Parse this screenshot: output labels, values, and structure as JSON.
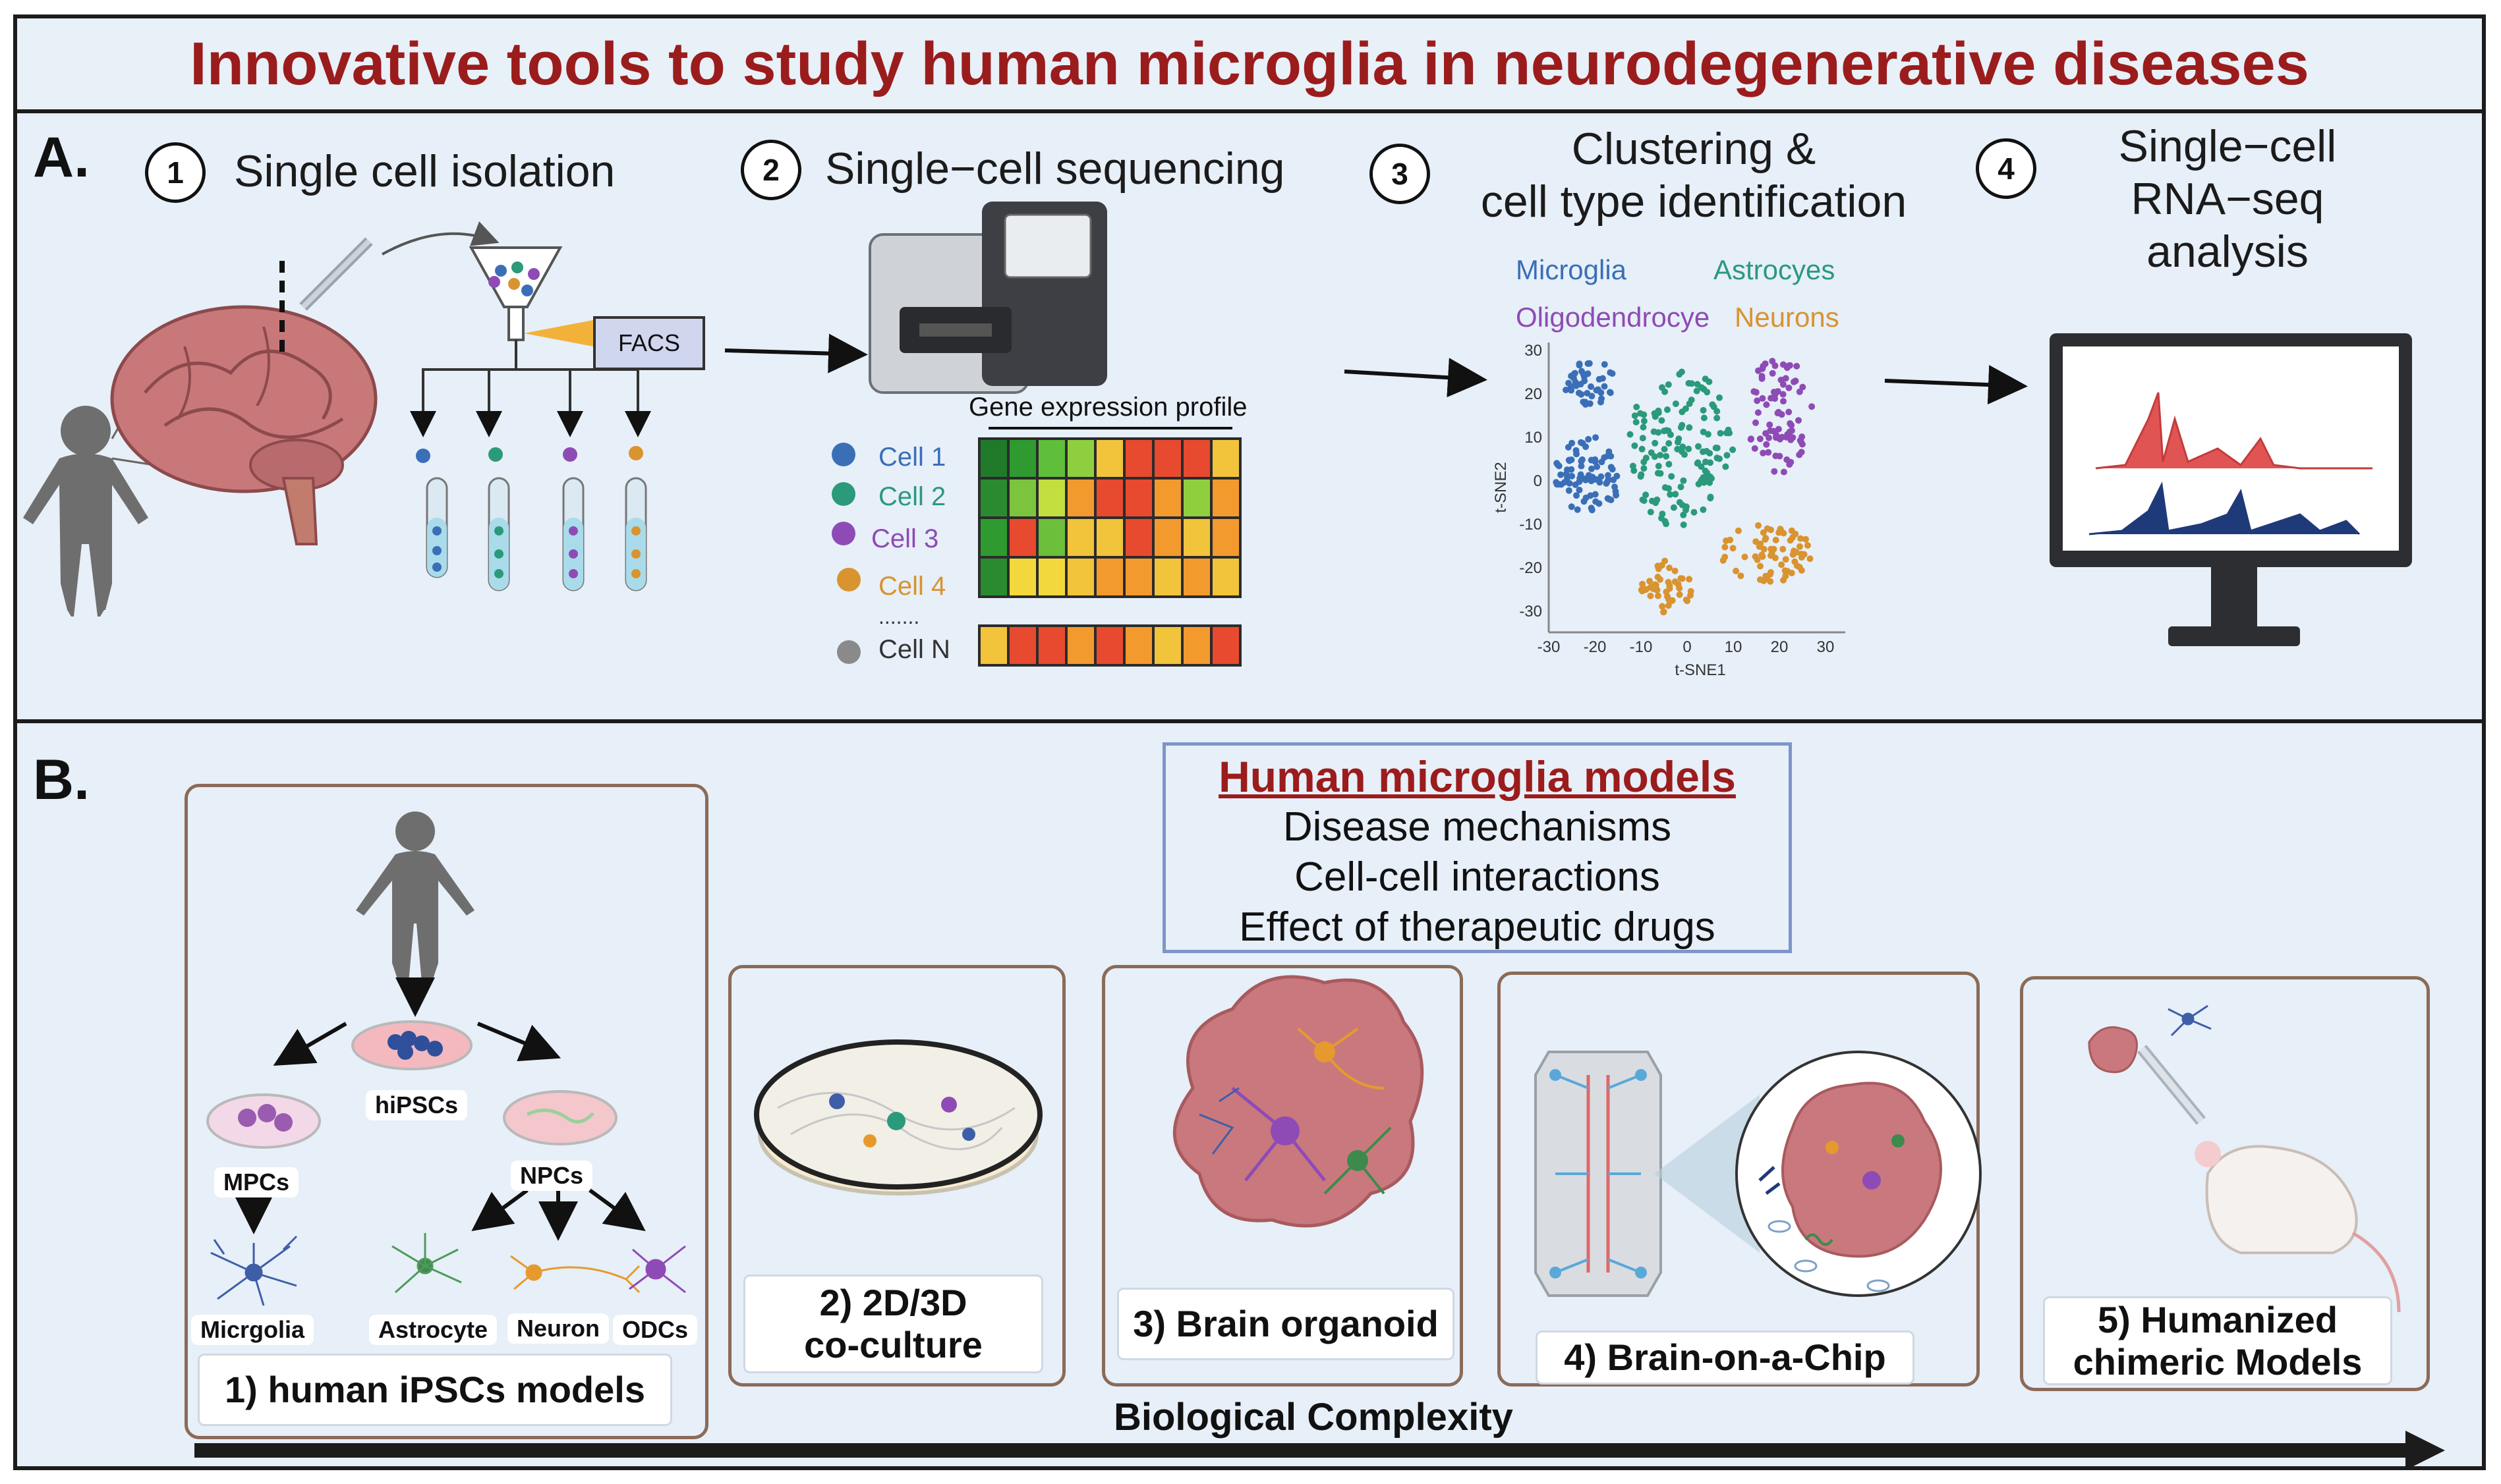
{
  "title": "Innovative tools to study human microglia in neurodegenerative diseases",
  "panel_a": {
    "label": "A.",
    "steps": [
      {
        "num": "1",
        "text": "Single cell isolation"
      },
      {
        "num": "2",
        "text": "Single−cell sequencing"
      },
      {
        "num": "3",
        "line1": "Clustering &",
        "line2": "cell type identification"
      },
      {
        "num": "4",
        "line1": "Single−cell",
        "line2": "RNA−seq",
        "line3": "analysis"
      }
    ],
    "facs_label": "FACS",
    "gene_expression_title": "Gene expression profile",
    "cells": [
      "Cell 1",
      "Cell 2",
      "Cell 3",
      "Cell 4",
      "Cell N"
    ],
    "cell_colors": [
      "#3a6fb7",
      "#2a9a7a",
      "#8e4bb5",
      "#d9932f",
      "#8a8a8a"
    ],
    "ellipsis": ".......",
    "heatmap_rows": [
      [
        "#1f7a2a",
        "#2e9a2f",
        "#5fbf3a",
        "#8fcf3f",
        "#f2c43c",
        "#e84a2f",
        "#e84a2f",
        "#e84a2f",
        "#f2c43c"
      ],
      [
        "#2a8a2f",
        "#7cc43d",
        "#c3de3f",
        "#f39a2f",
        "#e84a2f",
        "#e84a2f",
        "#f39a2f",
        "#8fcf3f",
        "#f39a2f"
      ],
      [
        "#2e9a2f",
        "#e84a2f",
        "#6cbf3a",
        "#f2c43c",
        "#f2c43c",
        "#e84a2f",
        "#f39a2f",
        "#f2c43c",
        "#f39a2f"
      ],
      [
        "#2a8a2f",
        "#f2d83c",
        "#f2d83c",
        "#f2c43c",
        "#f39a2f",
        "#f39a2f",
        "#f2c43c",
        "#f39a2f",
        "#f2c43c"
      ],
      [
        "#f2c43c",
        "#e84a2f",
        "#e84a2f",
        "#f39a2f",
        "#e84a2f",
        "#f39a2f",
        "#f2c43c",
        "#f39a2f",
        "#e84a2f"
      ]
    ],
    "tsne": {
      "legend": [
        {
          "name": "Microglia",
          "color": "#3a6fb7"
        },
        {
          "name": "Astrocyes",
          "color": "#2a9a7a"
        },
        {
          "name": "Oligodendrocye",
          "color": "#8e4bb5"
        },
        {
          "name": "Neurons",
          "color": "#d9932f"
        }
      ],
      "xlabel": "t-SNE1",
      "ylabel": "t-SNE2",
      "xticks": [
        "-30",
        "-20",
        "-10",
        "0",
        "10",
        "20",
        "30"
      ],
      "yticks": [
        "30",
        "20",
        "10",
        "0",
        "-10",
        "-20",
        "-30"
      ]
    }
  },
  "panel_b": {
    "label": "B.",
    "models_box": {
      "title": "Human microglia models",
      "lines": [
        "Disease mechanisms",
        "Cell-cell interactions",
        "Effect of therapeutic drugs"
      ]
    },
    "ipsc_labels": {
      "hipscs": "hiPSCs",
      "mpcs": "MPCs",
      "npcs": "NPCs",
      "microglia": "Micrgolia",
      "astrocyte": "Astrocyte",
      "neuron": "Neuron",
      "odcs": "ODCs"
    },
    "models": [
      {
        "line1": "1) human iPSCs models",
        "line2": ""
      },
      {
        "line1": "2) 2D/3D",
        "line2": "co-culture"
      },
      {
        "line1": "3) Brain organoid",
        "line2": ""
      },
      {
        "line1": "4) Brain-on-a-Chip",
        "line2": ""
      },
      {
        "line1": "5) Humanized",
        "line2": "chimeric Models"
      }
    ],
    "complexity_label": "Biological Complexity"
  }
}
